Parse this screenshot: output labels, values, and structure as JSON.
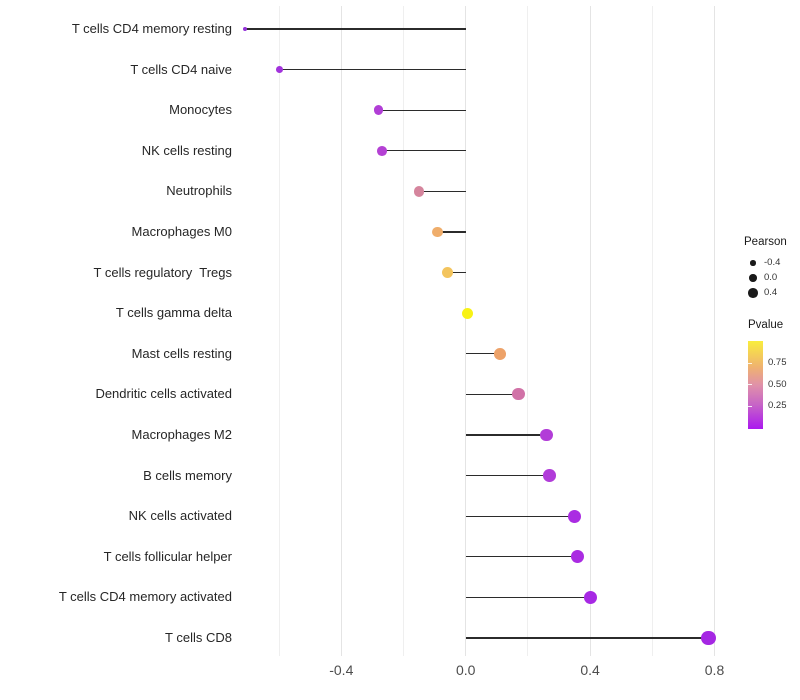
{
  "chart_data": {
    "type": "lollipop",
    "title": "",
    "xlabel": "",
    "ylabel": "",
    "xlim": [
      -0.75,
      0.85
    ],
    "grid": "vertical-only",
    "x_ticks": [
      {
        "label": "-0.4",
        "value": -0.4
      },
      {
        "label": "0.0",
        "value": 0.0
      },
      {
        "label": "0.4",
        "value": 0.4
      },
      {
        "label": "0.8",
        "value": 0.8
      }
    ],
    "x_grid_minor": [
      -0.6,
      -0.2,
      0.2,
      0.6
    ],
    "x_grid_major": [
      -0.4,
      0.0,
      0.4,
      0.8
    ],
    "rows": [
      {
        "label": "T cells CD4 memory resting",
        "pearson": -0.71,
        "pvalue_color": "#9330D8"
      },
      {
        "label": "T cells CD4 naive",
        "pearson": -0.6,
        "pvalue_color": "#A233DC"
      },
      {
        "label": "Monocytes",
        "pearson": -0.28,
        "pvalue_color": "#B13ED6"
      },
      {
        "label": "NK cells resting",
        "pearson": -0.27,
        "pvalue_color": "#B441D4"
      },
      {
        "label": "Neutrophils",
        "pearson": -0.15,
        "pvalue_color": "#D5859D"
      },
      {
        "label": "Macrophages M0",
        "pearson": -0.09,
        "pvalue_color": "#EFAD6B"
      },
      {
        "label": "T cells regulatory  Tregs",
        "pearson": -0.06,
        "pvalue_color": "#F3C45D"
      },
      {
        "label": "T cells gamma delta",
        "pearson": 0.005,
        "pvalue_color": "#F8F215"
      },
      {
        "label": "Mast cells resting",
        "pearson": 0.11,
        "pvalue_color": "#EDA269"
      },
      {
        "label": "Dendritic cells activated",
        "pearson": 0.17,
        "pvalue_color": "#D172A7"
      },
      {
        "label": "Macrophages M2",
        "pearson": 0.26,
        "pvalue_color": "#B23DD8"
      },
      {
        "label": "B cells memory",
        "pearson": 0.27,
        "pvalue_color": "#B13CD9"
      },
      {
        "label": "NK cells activated",
        "pearson": 0.35,
        "pvalue_color": "#AA2CE2"
      },
      {
        "label": "T cells follicular helper",
        "pearson": 0.36,
        "pvalue_color": "#AA2BE2"
      },
      {
        "label": "T cells CD4 memory activated",
        "pearson": 0.4,
        "pvalue_color": "#A729E4"
      },
      {
        "label": "T cells CD8",
        "pearson": 0.78,
        "pvalue_color": "#A527E3"
      }
    ],
    "legend": {
      "size": {
        "title": "Pearson",
        "items": [
          {
            "label": "-0.4",
            "diameter": 5.5
          },
          {
            "label": "0.0",
            "diameter": 7.5
          },
          {
            "label": "0.4",
            "diameter": 9.5
          }
        ],
        "dot_color": "#1a1a1a"
      },
      "color": {
        "title": "Pvalue",
        "ticks": [
          {
            "label": "0.75",
            "frac_from_top": 0.25
          },
          {
            "label": "0.50",
            "frac_from_top": 0.495
          },
          {
            "label": "0.25",
            "frac_from_top": 0.74
          }
        ],
        "gradient_stops_bottom_to_top": [
          {
            "color": "#AB18EF",
            "pos": 0
          },
          {
            "color": "#C765C6",
            "pos": 28
          },
          {
            "color": "#E091A9",
            "pos": 50
          },
          {
            "color": "#EFB171",
            "pos": 70
          },
          {
            "color": "#F9ED3D",
            "pos": 100
          }
        ]
      }
    },
    "stem_color": "#2b2b2b"
  }
}
